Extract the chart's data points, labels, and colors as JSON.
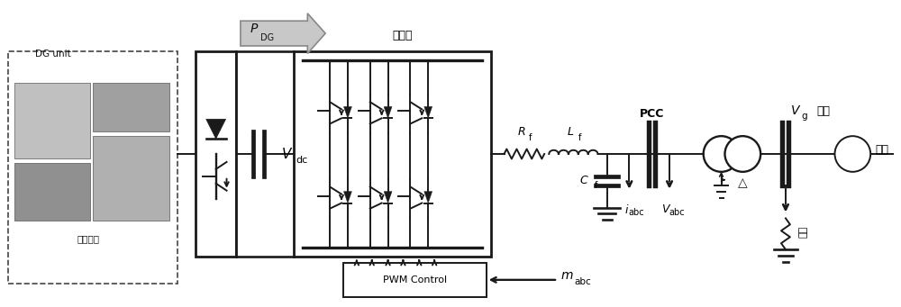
{
  "bg_color": "#ffffff",
  "line_color": "#1a1a1a",
  "lw": 1.4,
  "fig_width": 10.0,
  "fig_height": 3.41,
  "dpi": 100,
  "labels": {
    "DG_unit": "DG unit",
    "storage": "储能电池",
    "P_DG_math": "$P$",
    "P_DG_sub": "DG",
    "inverter": "逆变器",
    "V_dc_math": "$V$",
    "V_dc_sub": "dc",
    "R_f_math": "$R$",
    "R_f_sub": "f",
    "L_f_math": "$L$",
    "L_f_sub": "f",
    "C_f_math": "$C$",
    "C_f_sub": "f",
    "PCC": "PCC",
    "V_g_math": "$V$",
    "V_g_sub": "g",
    "grid": "电网",
    "i_abc_math": "$i$",
    "i_abc_sub": "abc",
    "V_abc_math": "$V$",
    "V_abc_sub": "abc",
    "PWM": "PWM Control",
    "m_abc_math": "$m$",
    "m_abc_sub": "abc",
    "fault": "故障"
  }
}
